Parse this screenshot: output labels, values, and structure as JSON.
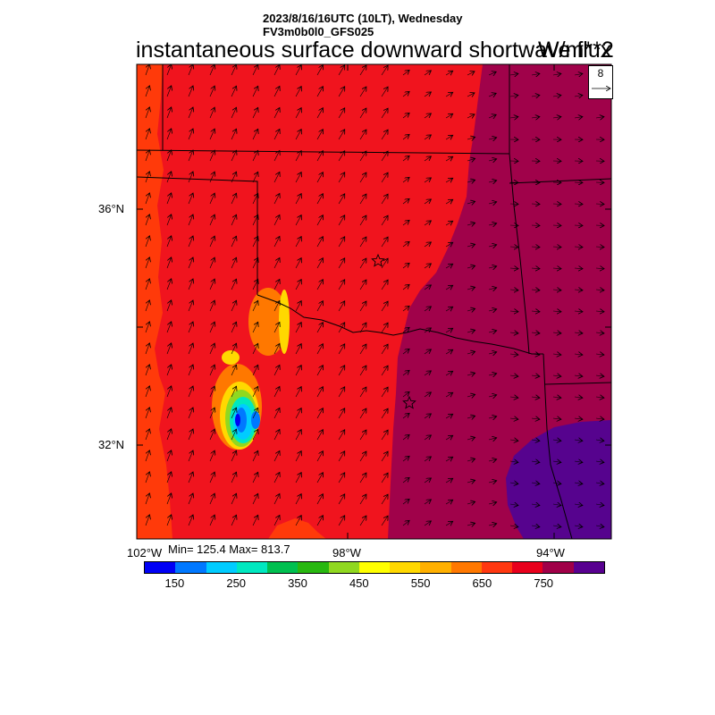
{
  "header": {
    "line1": "2023/8/16/16UTC (10LT), Wednesday",
    "line2": "FV3m0b0l0_GFS025"
  },
  "title": "instantaneous surface downward shortwave flux",
  "units": "W/m**2",
  "reference_vector": {
    "value": "8"
  },
  "stats": {
    "text": "Min= 125.4 Max= 813.7"
  },
  "axes": {
    "lat_labels": [
      "36°N",
      "32°N"
    ],
    "lon_labels": [
      "102°W",
      "98°W",
      "94°W"
    ]
  },
  "colorbar": {
    "colors": [
      "#0000f5",
      "#0078ff",
      "#00ccff",
      "#00e8c0",
      "#00c050",
      "#28b810",
      "#90d820",
      "#ffff00",
      "#ffd800",
      "#ffb000",
      "#ff7800",
      "#ff3810",
      "#e8001c",
      "#a00048",
      "#580090"
    ],
    "labels": [
      "150",
      "250",
      "350",
      "450",
      "550",
      "650",
      "750"
    ]
  },
  "colors": {
    "red_field": "#f0141e",
    "orange_field": "#ff3a0a",
    "maroon_field": "#a0024a",
    "purple_field": "#56038e"
  }
}
